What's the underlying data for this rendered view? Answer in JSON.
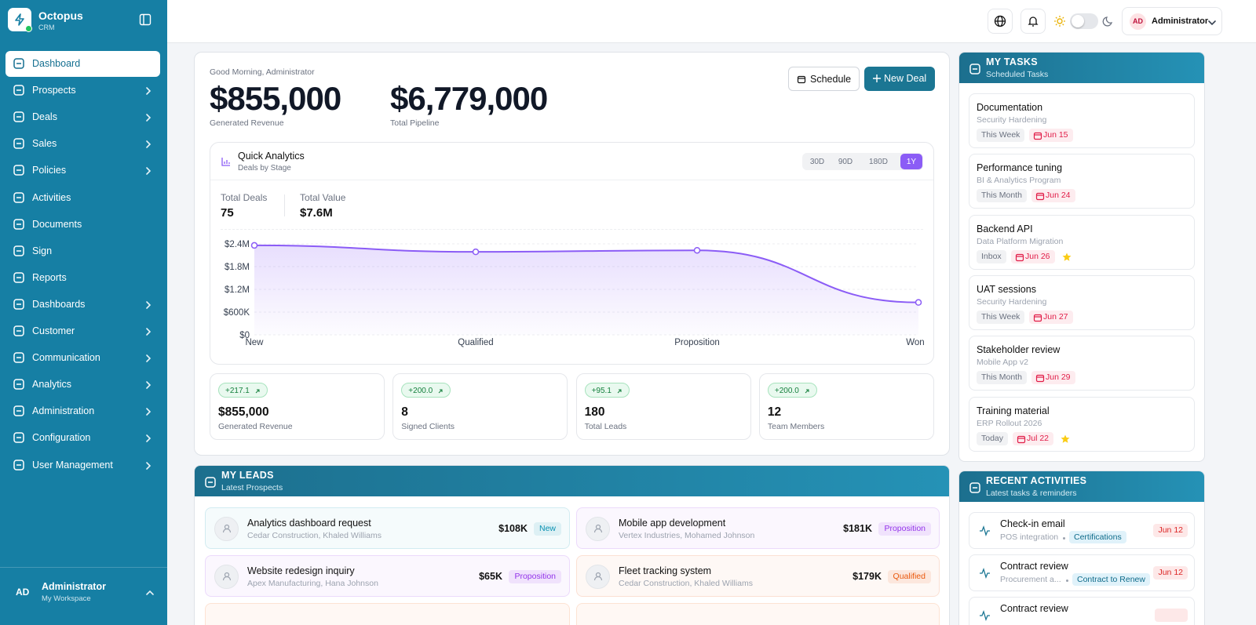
{
  "sidebar": {
    "brand": "Octopus",
    "product": "CRM",
    "menu": [
      {
        "label": "Dashboard",
        "active": true,
        "submenu": false
      },
      {
        "label": "Prospects",
        "active": false,
        "submenu": true
      },
      {
        "label": "Deals",
        "active": false,
        "submenu": true
      },
      {
        "label": "Sales",
        "active": false,
        "submenu": true
      },
      {
        "label": "Policies",
        "active": false,
        "submenu": true
      },
      {
        "label": "Activities",
        "active": false,
        "submenu": false
      },
      {
        "label": "Documents",
        "active": false,
        "submenu": false
      },
      {
        "label": "Sign",
        "active": false,
        "submenu": false
      },
      {
        "label": "Reports",
        "active": false,
        "submenu": false
      },
      {
        "label": "Dashboards",
        "active": false,
        "submenu": true
      },
      {
        "label": "Customer",
        "active": false,
        "submenu": true
      },
      {
        "label": "Communication",
        "active": false,
        "submenu": true
      },
      {
        "label": "Analytics",
        "active": false,
        "submenu": true
      },
      {
        "label": "Administration",
        "active": false,
        "submenu": true
      },
      {
        "label": "Configuration",
        "active": false,
        "submenu": true
      },
      {
        "label": "User Management",
        "active": false,
        "submenu": true
      }
    ],
    "user": {
      "initials": "AD",
      "name": "Administrator",
      "workspace": "My Workspace"
    }
  },
  "header": {
    "initials": "AD",
    "name": "Administrator"
  },
  "hero": {
    "greeting": "Good Morning, Administrator",
    "metrics": [
      {
        "value": "$855,000",
        "label": "Generated Revenue"
      },
      {
        "value": "$6,779,000",
        "label": "Total Pipeline"
      }
    ],
    "buttons": [
      "Schedule",
      "New Deal"
    ]
  },
  "analytics": {
    "title": "Quick Analytics",
    "subtitle": "Deals by Stage",
    "ranges": [
      "30D",
      "90D",
      "180D",
      "1Y"
    ],
    "active_range": 3,
    "stats": [
      {
        "label": "Total Deals",
        "value": "75"
      },
      {
        "label": "Total Value",
        "value": "$7.6M"
      }
    ]
  },
  "chart_data": {
    "type": "line",
    "categories": [
      "New",
      "Qualified",
      "Proposition",
      "Won"
    ],
    "values": [
      2360000,
      2190000,
      2230000,
      855000
    ],
    "color": "#8b5cf6",
    "ylim": [
      0,
      2400000
    ],
    "yticks": [
      {
        "value": 0,
        "label": "$0"
      },
      {
        "value": 600000,
        "label": "$600K"
      },
      {
        "value": 1200000,
        "label": "$1.2M"
      },
      {
        "value": 1800000,
        "label": "$1.8M"
      },
      {
        "value": 2400000,
        "label": "$2.4M"
      }
    ],
    "grid": true
  },
  "kpis": [
    {
      "delta": "+217.1",
      "value": "$855,000",
      "label": "Generated Revenue"
    },
    {
      "delta": "+200.0",
      "value": "8",
      "label": "Signed Clients"
    },
    {
      "delta": "+95.1",
      "value": "180",
      "label": "Total Leads"
    },
    {
      "delta": "+200.0",
      "value": "12",
      "label": "Team Members"
    }
  ],
  "tasks": {
    "title": "MY TASKS",
    "subtitle": "Scheduled Tasks",
    "items": [
      {
        "title": "Documentation",
        "project": "Security Hardening",
        "period": "This Week",
        "due": "Jun 15",
        "starred": false
      },
      {
        "title": "Performance tuning",
        "project": "BI & Analytics Program",
        "period": "This Month",
        "due": "Jun 24",
        "starred": false
      },
      {
        "title": "Backend API",
        "project": "Data Platform Migration",
        "period": "Inbox",
        "due": "Jun 26",
        "starred": true
      },
      {
        "title": "UAT sessions",
        "project": "Security Hardening",
        "period": "This Week",
        "due": "Jun 27",
        "starred": false
      },
      {
        "title": "Stakeholder review",
        "project": "Mobile App v2",
        "period": "This Month",
        "due": "Jun 29",
        "starred": false
      },
      {
        "title": "Training material",
        "project": "ERP Rollout 2026",
        "period": "Today",
        "due": "Jul 22",
        "starred": true
      }
    ]
  },
  "leads": {
    "title": "MY LEADS",
    "subtitle": "Latest Prospects",
    "items": [
      {
        "title": "Analytics dashboard request",
        "contact": "Cedar Construction, Khaled Williams",
        "amount": "$108K",
        "status": "New",
        "color": "#0891b2"
      },
      {
        "title": "Mobile app development",
        "contact": "Vertex Industries, Mohamed Johnson",
        "amount": "$181K",
        "status": "Proposition",
        "color": "#9333ea"
      },
      {
        "title": "Website redesign inquiry",
        "contact": "Apex Manufacturing, Hana Johnson",
        "amount": "$65K",
        "status": "Proposition",
        "color": "#9333ea"
      },
      {
        "title": "Fleet tracking system",
        "contact": "Cedar Construction, Khaled Williams",
        "amount": "$179K",
        "status": "Qualified",
        "color": "#ea580c"
      }
    ]
  },
  "activities": {
    "title": "RECENT ACTIVITIES",
    "subtitle": "Latest tasks & reminders",
    "items": [
      {
        "title": "Check-in email",
        "context": "POS integration",
        "tag": "Certifications",
        "date": "Jun 12"
      },
      {
        "title": "Contract review",
        "context": "Procurement a...",
        "tag": "Contract to Renew",
        "date": "Jun 12"
      },
      {
        "title": "Contract review"
      }
    ]
  }
}
